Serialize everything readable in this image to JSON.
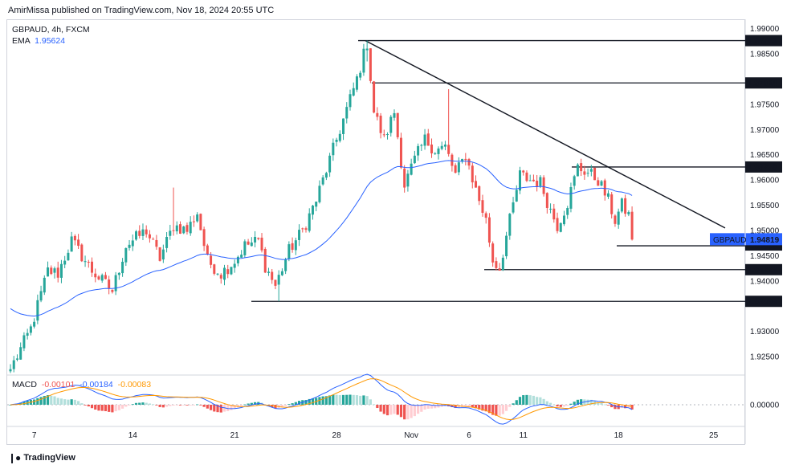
{
  "header": {
    "publisher_line": "AmirMissa published on TradingView.com, Nov 18, 2024 20:55 UTC"
  },
  "legend": {
    "symbol_line": "GBPAUD, 4h, FXCM",
    "ema_label": "EMA",
    "ema_value": "1.95624",
    "macd_label": "MACD",
    "macd_values": [
      "-0.00101",
      "-0.00184",
      "-0.00083"
    ]
  },
  "footer": {
    "brand": "TradingView"
  },
  "colors": {
    "up": "#26a69a",
    "down": "#ef5350",
    "ema": "#2962ff",
    "macd_line": "#2962ff",
    "signal_line": "#ff9800",
    "hist_up_strong": "#26a69a",
    "hist_up_weak": "#b2dfdb",
    "hist_down_strong": "#ef5350",
    "hist_down_weak": "#ffcdd2",
    "price_tag_bg": "#2962ff"
  },
  "chart_data": {
    "type": "candlestick",
    "symbol": "GBPAUD",
    "timeframe": "4h",
    "source": "FXCM",
    "y_axis_ticks": [
      "1.99000",
      "1.98500",
      "1.97500",
      "1.97000",
      "1.96500",
      "1.96000",
      "1.95500",
      "1.95000",
      "1.94500",
      "1.94000",
      "1.93000",
      "1.92500"
    ],
    "ylim": [
      1.9215,
      1.9917
    ],
    "x_axis_ticks": [
      "7",
      "14",
      "21",
      "28",
      "Nov",
      "6",
      "11",
      "18",
      "25"
    ],
    "price_levels": [
      "1.98763",
      "1.97924",
      "1.96258",
      "1.94223",
      "1.93595"
    ],
    "current_price_tag": {
      "label": "GBPAUD",
      "value": "1.94819"
    },
    "partial_level_label": "1.94696",
    "macd_axis_tick": "0.00000",
    "anchors": [
      {
        "i": 0,
        "v": 1.9225
      },
      {
        "i": 6,
        "v": 1.9305
      },
      {
        "i": 11,
        "v": 1.942
      },
      {
        "i": 14,
        "v": 1.9415
      },
      {
        "i": 18,
        "v": 1.948
      },
      {
        "i": 24,
        "v": 1.942
      },
      {
        "i": 30,
        "v": 1.938
      },
      {
        "i": 34,
        "v": 1.947
      },
      {
        "i": 40,
        "v": 1.95
      },
      {
        "i": 44,
        "v": 1.9445
      },
      {
        "i": 48,
        "v": 1.951
      },
      {
        "i": 52,
        "v": 1.95
      },
      {
        "i": 55,
        "v": 1.9535
      },
      {
        "i": 58,
        "v": 1.944
      },
      {
        "i": 62,
        "v": 1.9415
      },
      {
        "i": 66,
        "v": 1.944
      },
      {
        "i": 69,
        "v": 1.947
      },
      {
        "i": 73,
        "v": 1.948
      },
      {
        "i": 75,
        "v": 1.943
      },
      {
        "i": 78,
        "v": 1.939
      },
      {
        "i": 82,
        "v": 1.946
      },
      {
        "i": 86,
        "v": 1.95
      },
      {
        "i": 90,
        "v": 1.956
      },
      {
        "i": 94,
        "v": 1.964
      },
      {
        "i": 98,
        "v": 1.972
      },
      {
        "i": 102,
        "v": 1.98
      },
      {
        "i": 105,
        "v": 1.9872
      },
      {
        "i": 107,
        "v": 1.9735
      },
      {
        "i": 110,
        "v": 1.968
      },
      {
        "i": 113,
        "v": 1.9735
      },
      {
        "i": 116,
        "v": 1.959
      },
      {
        "i": 119,
        "v": 1.964
      },
      {
        "i": 122,
        "v": 1.968
      },
      {
        "i": 125,
        "v": 1.966
      },
      {
        "i": 128,
        "v": 1.9665
      },
      {
        "i": 131,
        "v": 1.961
      },
      {
        "i": 134,
        "v": 1.965
      },
      {
        "i": 137,
        "v": 1.958
      },
      {
        "i": 140,
        "v": 1.952
      },
      {
        "i": 142,
        "v": 1.944
      },
      {
        "i": 144,
        "v": 1.9425
      },
      {
        "i": 147,
        "v": 1.952
      },
      {
        "i": 150,
        "v": 1.961
      },
      {
        "i": 153,
        "v": 1.96
      },
      {
        "i": 156,
        "v": 1.9595
      },
      {
        "i": 159,
        "v": 1.954
      },
      {
        "i": 161,
        "v": 1.951
      },
      {
        "i": 164,
        "v": 1.9555
      },
      {
        "i": 167,
        "v": 1.9625
      },
      {
        "i": 170,
        "v": 1.9615
      },
      {
        "i": 173,
        "v": 1.96
      },
      {
        "i": 176,
        "v": 1.956
      },
      {
        "i": 178,
        "v": 1.952
      },
      {
        "i": 180,
        "v": 1.955
      },
      {
        "i": 182,
        "v": 1.953
      },
      {
        "i": 183,
        "v": 1.9482
      }
    ]
  }
}
